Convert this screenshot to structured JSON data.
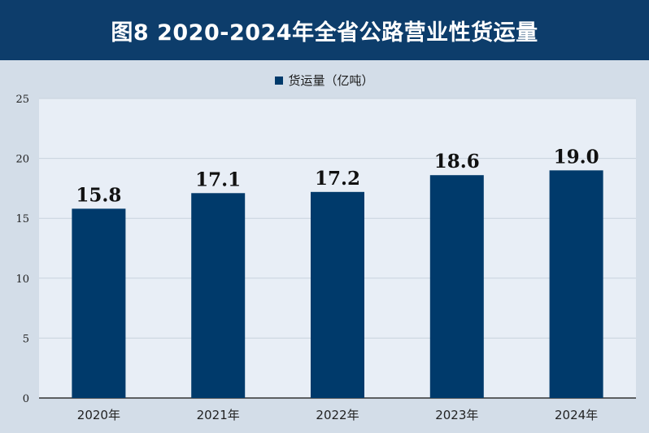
{
  "title": "图8  2020-2024年全省公路营业性货运量",
  "colors": {
    "header_bg": "#0d3d6b",
    "page_bg": "#d3dde8",
    "plot_bg": "#e8eef6",
    "bar": "#003a6b",
    "grid": "#c8d2dd"
  },
  "chart_data": {
    "type": "bar",
    "categories": [
      "2020年",
      "2021年",
      "2022年",
      "2023年",
      "2024年"
    ],
    "series": [
      {
        "name": "货运量（亿吨）",
        "values": [
          15.8,
          17.1,
          17.2,
          18.6,
          19.0
        ]
      }
    ],
    "data_labels": [
      "15.8",
      "17.1",
      "17.2",
      "18.6",
      "19.0"
    ],
    "ylim": [
      0,
      25
    ],
    "yticks": [
      0,
      5,
      10,
      15,
      20,
      25
    ],
    "ytick_labels": [
      "0",
      "5",
      "10",
      "15",
      "20",
      "25"
    ],
    "grid": true,
    "legend_position": "top-center"
  }
}
